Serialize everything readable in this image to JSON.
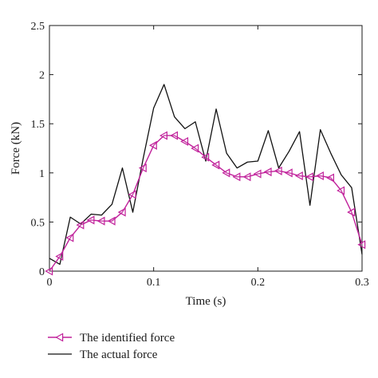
{
  "chart_data": {
    "type": "line",
    "xlabel": "Time (s)",
    "ylabel": "Force (kN)",
    "xlim": [
      0,
      0.3
    ],
    "ylim": [
      0,
      2.5
    ],
    "xticks": [
      0,
      0.1,
      0.2,
      0.3
    ],
    "xtick_labels": [
      "0",
      "0.1",
      "0.2",
      "0.3"
    ],
    "yticks": [
      0,
      0.5,
      1,
      1.5,
      2,
      2.5
    ],
    "ytick_labels": [
      "0",
      "0.5",
      "1",
      "1.5",
      "2",
      "2.5"
    ],
    "grid": false,
    "legend_position": "bottom-left, below plot",
    "series": [
      {
        "name": "The identified force",
        "color": "#c0209a",
        "marker": "left-triangle",
        "x": [
          0,
          0.01,
          0.02,
          0.03,
          0.04,
          0.05,
          0.06,
          0.07,
          0.08,
          0.09,
          0.1,
          0.11,
          0.12,
          0.13,
          0.14,
          0.15,
          0.16,
          0.17,
          0.18,
          0.19,
          0.2,
          0.21,
          0.22,
          0.23,
          0.24,
          0.25,
          0.26,
          0.27,
          0.28,
          0.29,
          0.3
        ],
        "y": [
          0,
          0.15,
          0.34,
          0.47,
          0.52,
          0.51,
          0.51,
          0.6,
          0.78,
          1.05,
          1.28,
          1.38,
          1.38,
          1.32,
          1.25,
          1.16,
          1.08,
          1.0,
          0.96,
          0.96,
          0.99,
          1.01,
          1.02,
          1.0,
          0.97,
          0.96,
          0.97,
          0.95,
          0.82,
          0.6,
          0.27
        ]
      },
      {
        "name": "The actual force",
        "color": "#111111",
        "marker": "none",
        "x": [
          0,
          0.01,
          0.02,
          0.03,
          0.04,
          0.05,
          0.06,
          0.07,
          0.08,
          0.09,
          0.1,
          0.11,
          0.12,
          0.13,
          0.14,
          0.15,
          0.16,
          0.17,
          0.18,
          0.19,
          0.2,
          0.21,
          0.22,
          0.23,
          0.24,
          0.25,
          0.26,
          0.27,
          0.28,
          0.29,
          0.3
        ],
        "y": [
          0.13,
          0.07,
          0.55,
          0.48,
          0.58,
          0.57,
          0.68,
          1.05,
          0.6,
          1.15,
          1.66,
          1.9,
          1.57,
          1.45,
          1.52,
          1.12,
          1.65,
          1.2,
          1.05,
          1.11,
          1.12,
          1.43,
          1.05,
          1.22,
          1.42,
          0.67,
          1.44,
          1.2,
          0.98,
          0.85,
          0.17
        ]
      }
    ]
  }
}
